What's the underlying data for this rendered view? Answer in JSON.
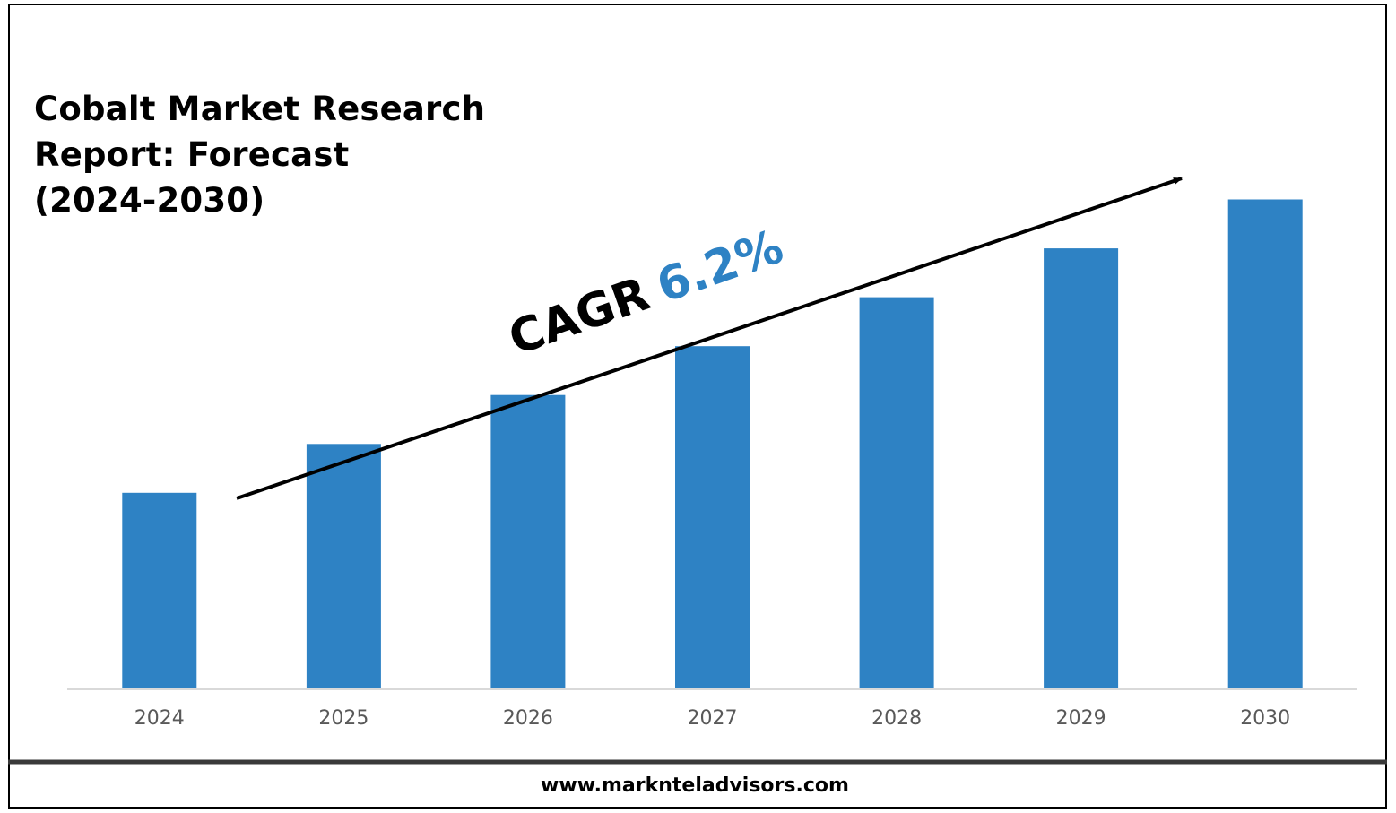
{
  "title_lines": [
    "Cobalt Market Research",
    "Report: Forecast",
    "(2024-2030)"
  ],
  "cagr": {
    "label": "CAGR",
    "value": "6.2%",
    "value_color": "#2E82C4"
  },
  "footer": {
    "url": "www.marknteladvisors.com"
  },
  "colors": {
    "bar": "#2E82C4",
    "axis": "#D9D9D9",
    "tick_text": "#595959",
    "arrow": "#000000"
  },
  "chart_data": {
    "type": "bar",
    "title": "Cobalt Market Research Report: Forecast (2024-2030)",
    "xlabel": "",
    "ylabel": "",
    "categories": [
      "2024",
      "2025",
      "2026",
      "2027",
      "2028",
      "2029",
      "2030"
    ],
    "values": [
      2.0,
      2.5,
      3.0,
      3.5,
      4.0,
      4.5,
      5.0
    ],
    "ylim": [
      0,
      5.5
    ],
    "grid": false,
    "legend": "none",
    "annotations": [
      {
        "text": "CAGR 6.2%",
        "type": "trend-arrow"
      }
    ]
  }
}
